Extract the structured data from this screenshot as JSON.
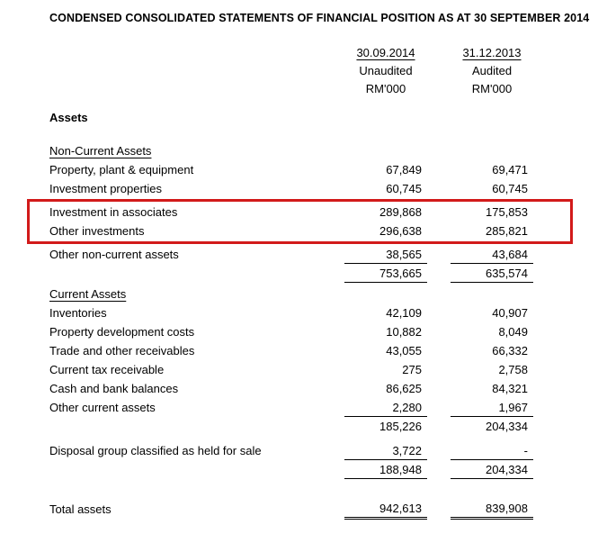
{
  "title": "CONDENSED CONSOLIDATED STATEMENTS OF FINANCIAL POSITION AS AT 30 SEPTEMBER 2014",
  "columns": [
    {
      "date": "30.09.2014",
      "status": "Unaudited",
      "unit": "RM'000"
    },
    {
      "date": "31.12.2013",
      "status": "Audited",
      "unit": "RM'000"
    }
  ],
  "highlight_color": "#d21a1a",
  "rows": [
    {
      "label": "Assets",
      "v1": "",
      "v2": ""
    },
    {
      "label": "Non-Current Assets",
      "v1": "",
      "v2": ""
    },
    {
      "label": "Property, plant & equipment",
      "v1": "67,849",
      "v2": "69,471"
    },
    {
      "label": "Investment properties",
      "v1": "60,745",
      "v2": "60,745"
    },
    {
      "label": "Investment in associates",
      "v1": "289,868",
      "v2": "175,853"
    },
    {
      "label": "Other investments",
      "v1": "296,638",
      "v2": "285,821"
    },
    {
      "label": "Other non-current assets",
      "v1": "38,565",
      "v2": "43,684"
    },
    {
      "label": "",
      "v1": "753,665",
      "v2": "635,574"
    },
    {
      "label": "Current Assets",
      "v1": "",
      "v2": ""
    },
    {
      "label": "Inventories",
      "v1": "42,109",
      "v2": "40,907"
    },
    {
      "label": "Property development costs",
      "v1": "10,882",
      "v2": "8,049"
    },
    {
      "label": "Trade and other receivables",
      "v1": "43,055",
      "v2": "66,332"
    },
    {
      "label": "Current tax receivable",
      "v1": "275",
      "v2": "2,758"
    },
    {
      "label": "Cash and bank balances",
      "v1": "86,625",
      "v2": "84,321"
    },
    {
      "label": "Other current assets",
      "v1": "2,280",
      "v2": "1,967"
    },
    {
      "label": "",
      "v1": "185,226",
      "v2": "204,334"
    },
    {
      "label": "Disposal group classified as held for sale",
      "v1": "3,722",
      "v2": "-"
    },
    {
      "label": "",
      "v1": "188,948",
      "v2": "204,334"
    },
    {
      "label": "Total assets",
      "v1": "942,613",
      "v2": "839,908"
    }
  ]
}
